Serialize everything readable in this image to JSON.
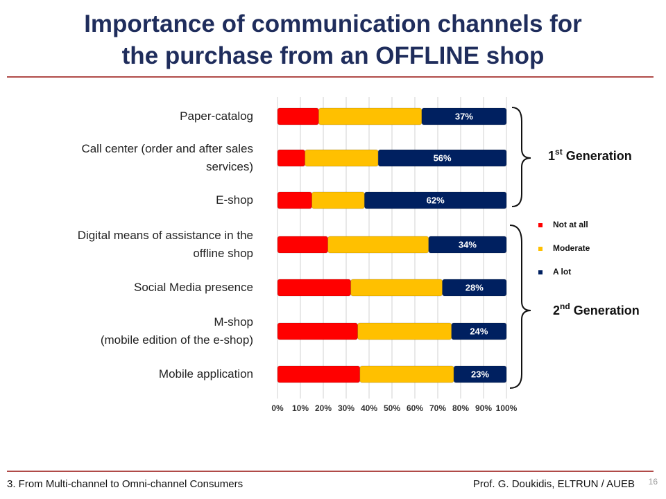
{
  "header": {
    "title": "Importance of communication channels for\nthe purchase from an OFFLINE shop"
  },
  "chart_data": {
    "type": "stacked-bar-horizontal",
    "categories": [
      "Paper-catalog",
      "Call center  (order and after sales\nservices)",
      "E-shop",
      "Digital means of assistance in the\noffline shop",
      "Social Media presence",
      "M-shop\n(mobile edition of the e-shop)",
      "Mobile application"
    ],
    "series": [
      {
        "name": "Not at all",
        "color": "#ff0000",
        "values": [
          18,
          12,
          15,
          22,
          32,
          35,
          36
        ]
      },
      {
        "name": "Moderate",
        "color": "#ffc000",
        "values": [
          45,
          32,
          23,
          44,
          40,
          41,
          41
        ]
      },
      {
        "name": "A lot",
        "color": "#002060",
        "values": [
          37,
          56,
          62,
          34,
          28,
          24,
          23
        ],
        "value_labels": [
          "37%",
          "56%",
          "62%",
          "34%",
          "28%",
          "24%",
          "23%"
        ]
      }
    ],
    "xlim": [
      0,
      100
    ],
    "xticks": [
      {
        "value": 0,
        "label": "0%"
      },
      {
        "value": 10,
        "label": "10%"
      },
      {
        "value": 20,
        "label": "20%"
      },
      {
        "value": 30,
        "label": "30%"
      },
      {
        "value": 40,
        "label": "40%"
      },
      {
        "value": 50,
        "label": "50%"
      },
      {
        "value": 60,
        "label": "60%"
      },
      {
        "value": 70,
        "label": "70%"
      },
      {
        "value": 80,
        "label": "80%"
      },
      {
        "value": 90,
        "label": "90%"
      },
      {
        "value": 100,
        "label": "100%"
      }
    ],
    "grid": true,
    "legend": "right",
    "groups": [
      {
        "ordinal": "1",
        "suffix": "st",
        "text": "Generation"
      },
      {
        "ordinal": "2",
        "suffix": "nd",
        "text": "Generation"
      }
    ]
  },
  "footer": {
    "section": "3. From Multi-channel to Omni-channel Consumers",
    "author": "Prof. G. Doukidis, ELTRUN / AUEB",
    "page": "16"
  }
}
